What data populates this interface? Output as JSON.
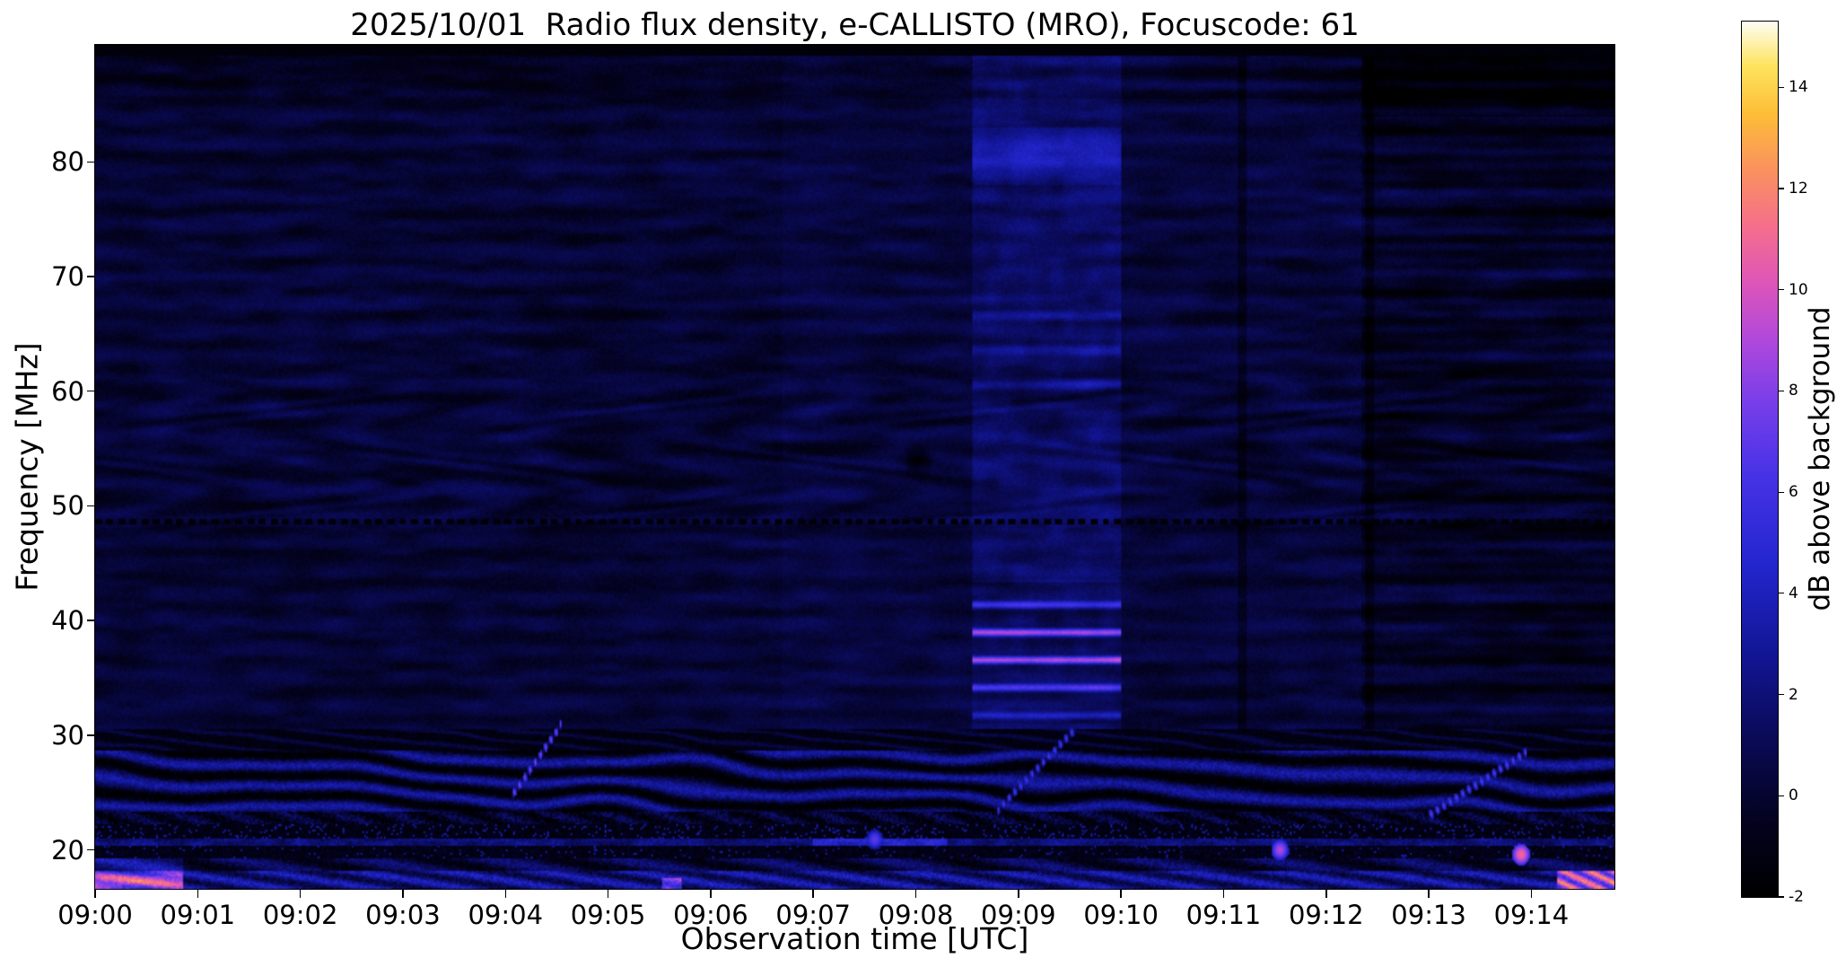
{
  "figure": {
    "title": "2025/10/01  Radio flux density, e-CALLISTO (MRO), Focuscode: 61",
    "xlabel": "Observation time [UTC]",
    "ylabel": "Frequency [MHz]",
    "colorbar_label": "dB above background",
    "background_color": "#ffffff"
  },
  "chart_data": {
    "type": "heatmap",
    "title": "2025/10/01  Radio flux density, e-CALLISTO (MRO), Focuscode: 61",
    "xlabel": "Observation time [UTC]",
    "ylabel": "Frequency [MHz]",
    "x_ticks": [
      "09:00",
      "09:01",
      "09:02",
      "09:03",
      "09:04",
      "09:05",
      "09:06",
      "09:07",
      "09:08",
      "09:09",
      "09:10",
      "09:11",
      "09:12",
      "09:13",
      "09:14"
    ],
    "x_tick_minutes": [
      0,
      1,
      2,
      3,
      4,
      5,
      6,
      7,
      8,
      9,
      10,
      11,
      12,
      13,
      14
    ],
    "duration_min": 14.81,
    "y_ticks": [
      20,
      30,
      40,
      50,
      60,
      70,
      80
    ],
    "freq_range_mhz": [
      16.6,
      90.2
    ],
    "grid": false,
    "colorbar": {
      "label": "dB above background",
      "ticks": [
        -2,
        0,
        2,
        4,
        6,
        8,
        10,
        12,
        14
      ],
      "range": [
        -2,
        15.3
      ],
      "colormap_stops": [
        {
          "pos": 0.0,
          "rgb": [
            0,
            0,
            0
          ]
        },
        {
          "pos": 0.08,
          "rgb": [
            3,
            2,
            28
          ]
        },
        {
          "pos": 0.18,
          "rgb": [
            10,
            10,
            86
          ]
        },
        {
          "pos": 0.28,
          "rgb": [
            18,
            22,
            150
          ]
        },
        {
          "pos": 0.38,
          "rgb": [
            35,
            38,
            205
          ]
        },
        {
          "pos": 0.48,
          "rgb": [
            70,
            50,
            230
          ]
        },
        {
          "pos": 0.565,
          "rgb": [
            120,
            62,
            233
          ]
        },
        {
          "pos": 0.635,
          "rgb": [
            175,
            72,
            220
          ]
        },
        {
          "pos": 0.7,
          "rgb": [
            220,
            85,
            185
          ]
        },
        {
          "pos": 0.765,
          "rgb": [
            245,
            110,
            140
          ]
        },
        {
          "pos": 0.83,
          "rgb": [
            250,
            145,
            95
          ]
        },
        {
          "pos": 0.895,
          "rgb": [
            253,
            190,
            55
          ]
        },
        {
          "pos": 0.95,
          "rgb": [
            253,
            228,
            95
          ]
        },
        {
          "pos": 1.0,
          "rgb": [
            253,
            253,
            245
          ]
        }
      ]
    },
    "features": {
      "background_level_db": 0.2,
      "dashed_dark_line_mhz": 48.6,
      "rfi_band_top_mhz": 30.6,
      "ripple_band_mhz": [
        48,
        61
      ],
      "solar_burst_column": {
        "t_start_min": 8.55,
        "t_end_min": 10.0,
        "stripe_center_mhz": 37.5,
        "stripe_band_mhz": [
          31,
          43.5
        ],
        "upper_band_mhz": [
          78,
          83
        ],
        "mid_band_mhz": [
          59,
          68
        ],
        "peak_db": 8.5,
        "column_boost_db": 0.9
      },
      "bright_column": {
        "t_start_min": 6.7,
        "t_end_min": 8.55,
        "boost_db": 0.3
      },
      "post_column": {
        "t_start_min": 10.0,
        "t_end_min": 12.35,
        "boost_db": 0.15
      },
      "dark_right_segment": {
        "t_start_min": 12.35,
        "boost_db": -0.5,
        "dark_top_mhz": 84
      },
      "dark_vertical_lines_min": [
        11.18,
        12.42
      ],
      "dark_blob": {
        "t_min": 8.02,
        "f_mhz": 54.0,
        "depth_db": 2.2
      },
      "diagonal_streaks": [
        {
          "t0": 4.05,
          "f0": 24.5,
          "t1": 4.55,
          "f1": 31.0,
          "db": 8.5
        },
        {
          "t0": 8.8,
          "f0": 23.5,
          "t1": 9.55,
          "f1": 30.5,
          "db": 7.0
        },
        {
          "t0": 13.0,
          "f0": 23.0,
          "t1": 13.95,
          "f1": 28.5,
          "db": 7.5
        }
      ],
      "bright_dots": [
        {
          "t": 11.55,
          "f": 20.0,
          "db": 9
        },
        {
          "t": 13.9,
          "f": 19.6,
          "db": 11
        },
        {
          "t": 7.6,
          "f": 20.9,
          "db": 7
        }
      ],
      "bottom_orange_right_start_min": 14.25,
      "bottom_orange_left_end_min": 0.85
    }
  }
}
